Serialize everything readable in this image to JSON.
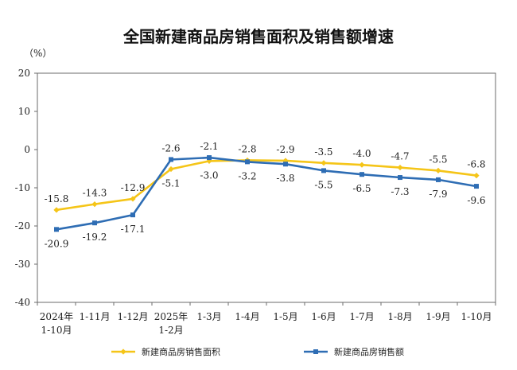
{
  "chart_data": {
    "type": "line",
    "title": "全国新建商品房销售面积及销售额增速",
    "unit": "（%）",
    "categories": [
      [
        "2024年",
        "1-10月"
      ],
      [
        "1-11月"
      ],
      [
        "1-12月"
      ],
      [
        "2025年",
        "1-2月"
      ],
      [
        "1-3月"
      ],
      [
        "1-4月"
      ],
      [
        "1-5月"
      ],
      [
        "1-6月"
      ],
      [
        "1-7月"
      ],
      [
        "1-8月"
      ],
      [
        "1-9月"
      ],
      [
        "1-10月"
      ]
    ],
    "ylim": [
      -40,
      20
    ],
    "yticks": [
      "20",
      "10",
      "0",
      "-10",
      "-20",
      "-30",
      "-40"
    ],
    "series": [
      {
        "name": "新建商品房销售面积",
        "color": "#F5C518",
        "marker": "diamond",
        "values": [
          -15.8,
          -14.3,
          -12.9,
          -5.1,
          -3.0,
          -2.8,
          -2.9,
          -3.5,
          -4.0,
          -4.7,
          -5.5,
          -6.8
        ],
        "labels": [
          "-15.8",
          "-14.3",
          "-12.9",
          "-5.1",
          "-3.0",
          "-2.8",
          "-2.9",
          "-3.5",
          "-4.0",
          "-4.7",
          "-5.5",
          "-6.8"
        ]
      },
      {
        "name": "新建商品房销售额",
        "color": "#2E6DB4",
        "marker": "square",
        "values": [
          -20.9,
          -19.2,
          -17.1,
          -2.6,
          -2.1,
          -3.2,
          -3.8,
          -5.5,
          -6.5,
          -7.3,
          -7.9,
          -9.6
        ],
        "labels": [
          "-20.9",
          "-19.2",
          "-17.1",
          "-2.6",
          "-2.1",
          "-3.2",
          "-3.8",
          "-5.5",
          "-6.5",
          "-7.3",
          "-7.9",
          "-9.6"
        ]
      }
    ],
    "legend_position": "bottom",
    "grid": false
  }
}
